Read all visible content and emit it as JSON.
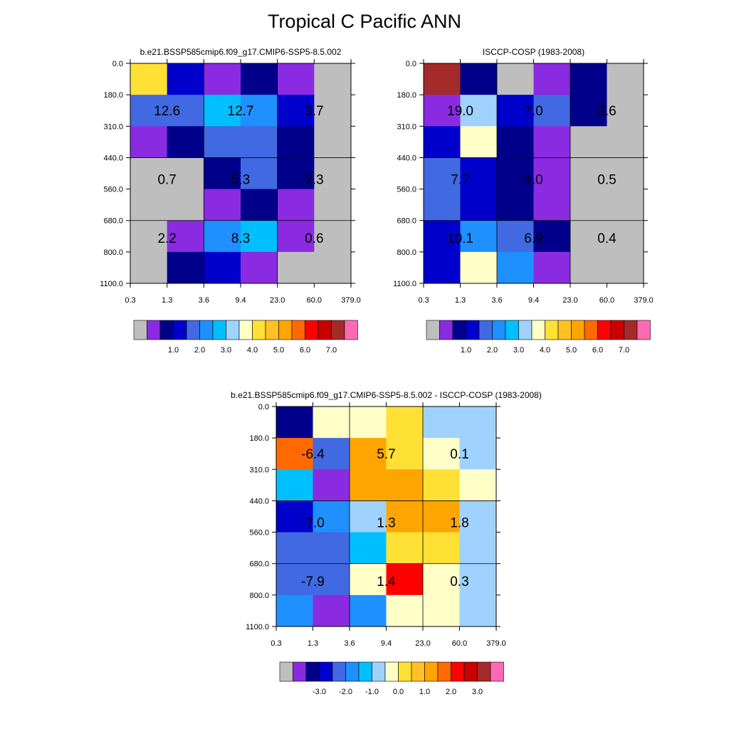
{
  "title": "Tropical C Pacific ANN",
  "colors": {
    "standard": [
      "#bebebe",
      "#8a2be2",
      "#00008b",
      "#0000cd",
      "#4169e1",
      "#1e90ff",
      "#00bfff",
      "#a0d2ff",
      "#ffffc8",
      "#ffe135",
      "#ffc125",
      "#ffa500",
      "#ff6a00",
      "#ff0000",
      "#c80000",
      "#a52a2a",
      "#ff69b4"
    ],
    "missing": "#bebebe"
  },
  "chart_data": [
    {
      "type": "heatmap",
      "title": "b.e21.BSSP585cmip6.f09_g17.CMIP6-SSP5-8.5.002",
      "x_ticks": [
        "0.3",
        "1.3",
        "3.6",
        "9.4",
        "23.0",
        "60.0",
        "379.0"
      ],
      "y_ticks": [
        "0.0",
        "180.0",
        "310.0",
        "440.0",
        "560.0",
        "680.0",
        "800.0",
        "1100.0"
      ],
      "cells": [
        [
          9,
          3,
          1,
          2,
          1,
          0
        ],
        [
          4,
          4,
          6,
          5,
          3,
          0
        ],
        [
          1,
          2,
          4,
          4,
          2,
          0
        ],
        [
          0,
          0,
          2,
          4,
          2,
          0
        ],
        [
          0,
          0,
          1,
          2,
          1,
          0
        ],
        [
          0,
          1,
          5,
          6,
          1,
          0
        ],
        [
          0,
          2,
          3,
          1,
          0,
          0
        ]
      ],
      "box_values": [
        "12.6",
        "12.7",
        "3.7",
        "0.7",
        "5.3",
        "2.3",
        "2.2",
        "8.3",
        "0.6"
      ],
      "colorbar_labels": [
        "1.0",
        "2.0",
        "3.0",
        "4.0",
        "5.0",
        "6.0",
        "7.0"
      ]
    },
    {
      "type": "heatmap",
      "title": "ISCCP-COSP (1983-2008)",
      "x_ticks": [
        "0.3",
        "1.3",
        "3.6",
        "9.4",
        "23.0",
        "60.0",
        "379.0"
      ],
      "y_ticks": [
        "0.0",
        "180.0",
        "310.0",
        "440.0",
        "560.0",
        "680.0",
        "800.0",
        "1100.0"
      ],
      "cells": [
        [
          15,
          2,
          0,
          1,
          2,
          0
        ],
        [
          1,
          7,
          3,
          4,
          2,
          0
        ],
        [
          3,
          8,
          2,
          1,
          0,
          0
        ],
        [
          4,
          3,
          2,
          1,
          0,
          0
        ],
        [
          4,
          3,
          2,
          1,
          0,
          0
        ],
        [
          3,
          5,
          4,
          2,
          0,
          0
        ],
        [
          3,
          8,
          5,
          1,
          0,
          0
        ]
      ],
      "box_values": [
        "19.0",
        "7.0",
        "3.6",
        "7.7",
        "4.0",
        "0.5",
        "10.1",
        "6.9",
        "0.4"
      ],
      "colorbar_labels": [
        "1.0",
        "2.0",
        "3.0",
        "4.0",
        "5.0",
        "6.0",
        "7.0"
      ]
    },
    {
      "type": "heatmap",
      "title": "b.e21.BSSP585cmip6.f09_g17.CMIP6-SSP5-8.5.002 - ISCCP-COSP (1983-2008)",
      "x_ticks": [
        "0.3",
        "1.3",
        "3.6",
        "9.4",
        "23.0",
        "60.0",
        "379.0"
      ],
      "y_ticks": [
        "0.0",
        "180.0",
        "310.0",
        "440.0",
        "560.0",
        "680.0",
        "800.0",
        "1100.0"
      ],
      "cells": [
        [
          2,
          8,
          8,
          9,
          7,
          7
        ],
        [
          12,
          4,
          11,
          9,
          8,
          7
        ],
        [
          6,
          1,
          11,
          11,
          9,
          8
        ],
        [
          3,
          5,
          7,
          11,
          11,
          7
        ],
        [
          4,
          4,
          6,
          9,
          9,
          7
        ],
        [
          4,
          4,
          8,
          13,
          8,
          7
        ],
        [
          5,
          1,
          5,
          8,
          8,
          7
        ]
      ],
      "box_values": [
        "-6.4",
        "5.7",
        "0.1",
        "-7.0",
        "1.3",
        "1.8",
        "-7.9",
        "1.4",
        "0.3"
      ],
      "colorbar_labels": [
        "-3.0",
        "-2.0",
        "-1.0",
        "0.0",
        "1.0",
        "2.0",
        "3.0"
      ]
    }
  ]
}
